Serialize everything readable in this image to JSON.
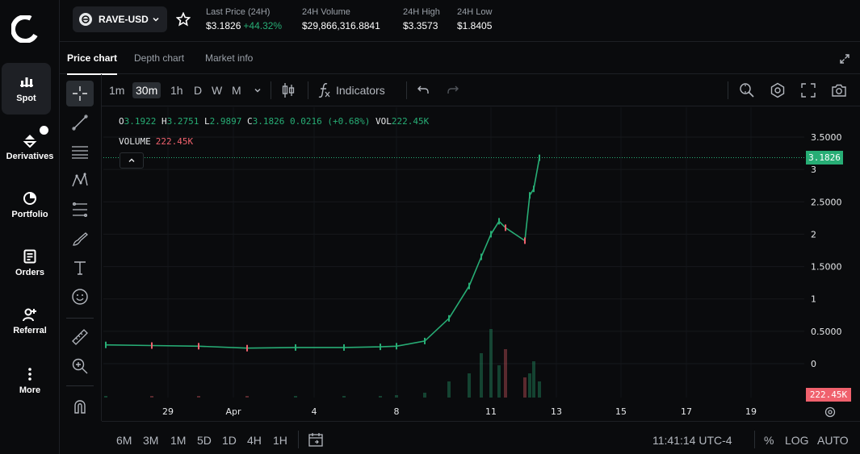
{
  "sidebar": {
    "items": [
      {
        "label": "Spot",
        "icon": "bar-chart-icon"
      },
      {
        "label": "Derivatives",
        "icon": "derivatives-icon"
      },
      {
        "label": "Portfolio",
        "icon": "pie-chart-icon"
      },
      {
        "label": "Orders",
        "icon": "orders-icon"
      },
      {
        "label": "Referral",
        "icon": "add-user-icon"
      },
      {
        "label": "More",
        "icon": "more-vertical-icon"
      }
    ]
  },
  "header": {
    "pair": "RAVE-USD",
    "stats": [
      {
        "label": "Last Price (24H)",
        "value": "$3.1826",
        "change": "+44.32%"
      },
      {
        "label": "24H Volume",
        "value": "$29,866,316.8841"
      },
      {
        "label": "24H High",
        "value": "$3.3573"
      },
      {
        "label": "24H Low",
        "value": "$1.8405"
      }
    ]
  },
  "tabs": [
    "Price chart",
    "Depth chart",
    "Market info"
  ],
  "toolbar": {
    "intervals": [
      "1m",
      "30m",
      "1h",
      "D",
      "W",
      "M"
    ],
    "active_interval": "30m",
    "indicators_label": "Indicators"
  },
  "legend": {
    "open_label": "O",
    "open": "3.1922",
    "high_label": "H",
    "high": "3.2751",
    "low_label": "L",
    "low": "2.9897",
    "close_label": "C",
    "close": "3.1826",
    "change": "0.0216 (+0.68%)",
    "vol_label": "VOL",
    "vol": "222.45K",
    "volume_label": "VOLUME",
    "volume": "222.45K"
  },
  "price_tag": "3.1826",
  "volume_tag": "222.45K",
  "bottom": {
    "ranges": [
      "6M",
      "3M",
      "1M",
      "5D",
      "1D",
      "4H",
      "1H"
    ],
    "time": "11:41:14 UTC-4",
    "percent": "%",
    "log": "LOG",
    "auto": "AUTO"
  },
  "colors": {
    "up": "#27ad75",
    "down": "#f0616d",
    "background": "#0a0b0d"
  },
  "chart_data": {
    "type": "line",
    "title": "",
    "y_tick_labels": [
      "3.5000",
      "3",
      "2.5000",
      "2",
      "1.5000",
      "1",
      "0.5000",
      "0"
    ],
    "x_tick_labels": [
      "29",
      "Apr",
      "4",
      "8",
      "11",
      "13",
      "15",
      "17",
      "19"
    ],
    "ylim": [
      0,
      3.6
    ],
    "x": [
      "Mar 26",
      "Mar 28",
      "Mar 30",
      "Apr 1",
      "Apr 3",
      "Apr 5",
      "Apr 7",
      "Apr 8",
      "Apr 9",
      "Apr 9.5",
      "Apr 10",
      "Apr 10.5",
      "Apr 11",
      "Apr 11.5",
      "Apr 11.7",
      "Apr 11.9",
      "Apr 12",
      "Apr 12.2",
      "Apr 12.4"
    ],
    "values": [
      0.29,
      0.28,
      0.27,
      0.24,
      0.25,
      0.25,
      0.26,
      0.27,
      0.35,
      0.7,
      1.2,
      1.65,
      2.0,
      2.2,
      2.1,
      1.9,
      2.6,
      2.7,
      3.18
    ],
    "last_value": 3.1826,
    "volume_last": "222.45K",
    "grid": true
  }
}
